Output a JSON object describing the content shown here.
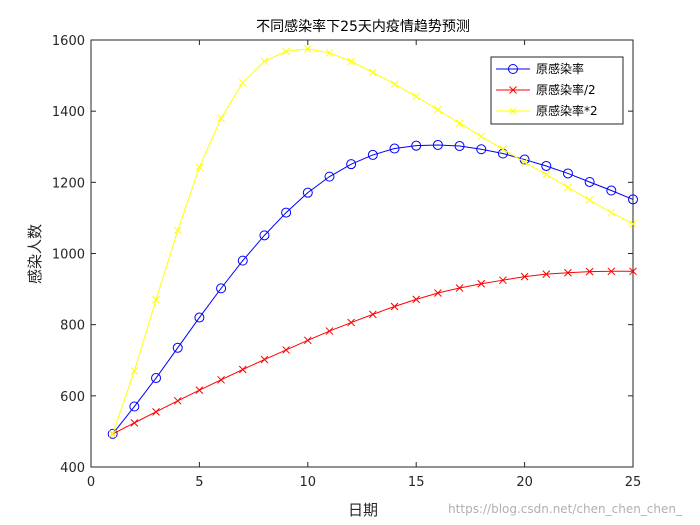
{
  "chart_data": {
    "type": "line",
    "title": "不同感染率下25天内疫情趋势预测",
    "xlabel": "日期",
    "ylabel": "感染人数",
    "xlim": [
      0,
      25
    ],
    "ylim": [
      400,
      1600
    ],
    "xticks": [
      0,
      5,
      10,
      15,
      20,
      25
    ],
    "yticks": [
      400,
      600,
      800,
      1000,
      1200,
      1400,
      1600
    ],
    "grid": false,
    "legend_position": "top-right",
    "x": [
      1,
      2,
      3,
      4,
      5,
      6,
      7,
      8,
      9,
      10,
      11,
      12,
      13,
      14,
      15,
      16,
      17,
      18,
      19,
      20,
      21,
      22,
      23,
      24,
      25
    ],
    "series": [
      {
        "name": "原感染率",
        "color": "#0000ff",
        "marker": "circle",
        "values": [
          493,
          570,
          650,
          735,
          820,
          902,
          980,
          1051,
          1115,
          1171,
          1216,
          1251,
          1277,
          1295,
          1303,
          1305,
          1302,
          1293,
          1281,
          1264,
          1246,
          1225,
          1201,
          1177,
          1152
        ]
      },
      {
        "name": "原感染率/2",
        "color": "#ff0000",
        "marker": "x",
        "values": [
          493,
          524,
          555,
          586,
          616,
          645,
          674,
          702,
          729,
          756,
          782,
          806,
          829,
          851,
          871,
          889,
          903,
          915,
          925,
          935,
          942,
          946,
          949,
          950,
          950
        ]
      },
      {
        "name": "原感染率*2",
        "color": "#ffff00",
        "marker": "x",
        "values": [
          493,
          670,
          870,
          1065,
          1243,
          1380,
          1480,
          1540,
          1568,
          1575,
          1564,
          1540,
          1509,
          1476,
          1441,
          1404,
          1366,
          1329,
          1293,
          1257,
          1222,
          1186,
          1150,
          1115,
          1083
        ]
      }
    ]
  },
  "watermark": "https://blog.csdn.net/chen_chen_chen_"
}
